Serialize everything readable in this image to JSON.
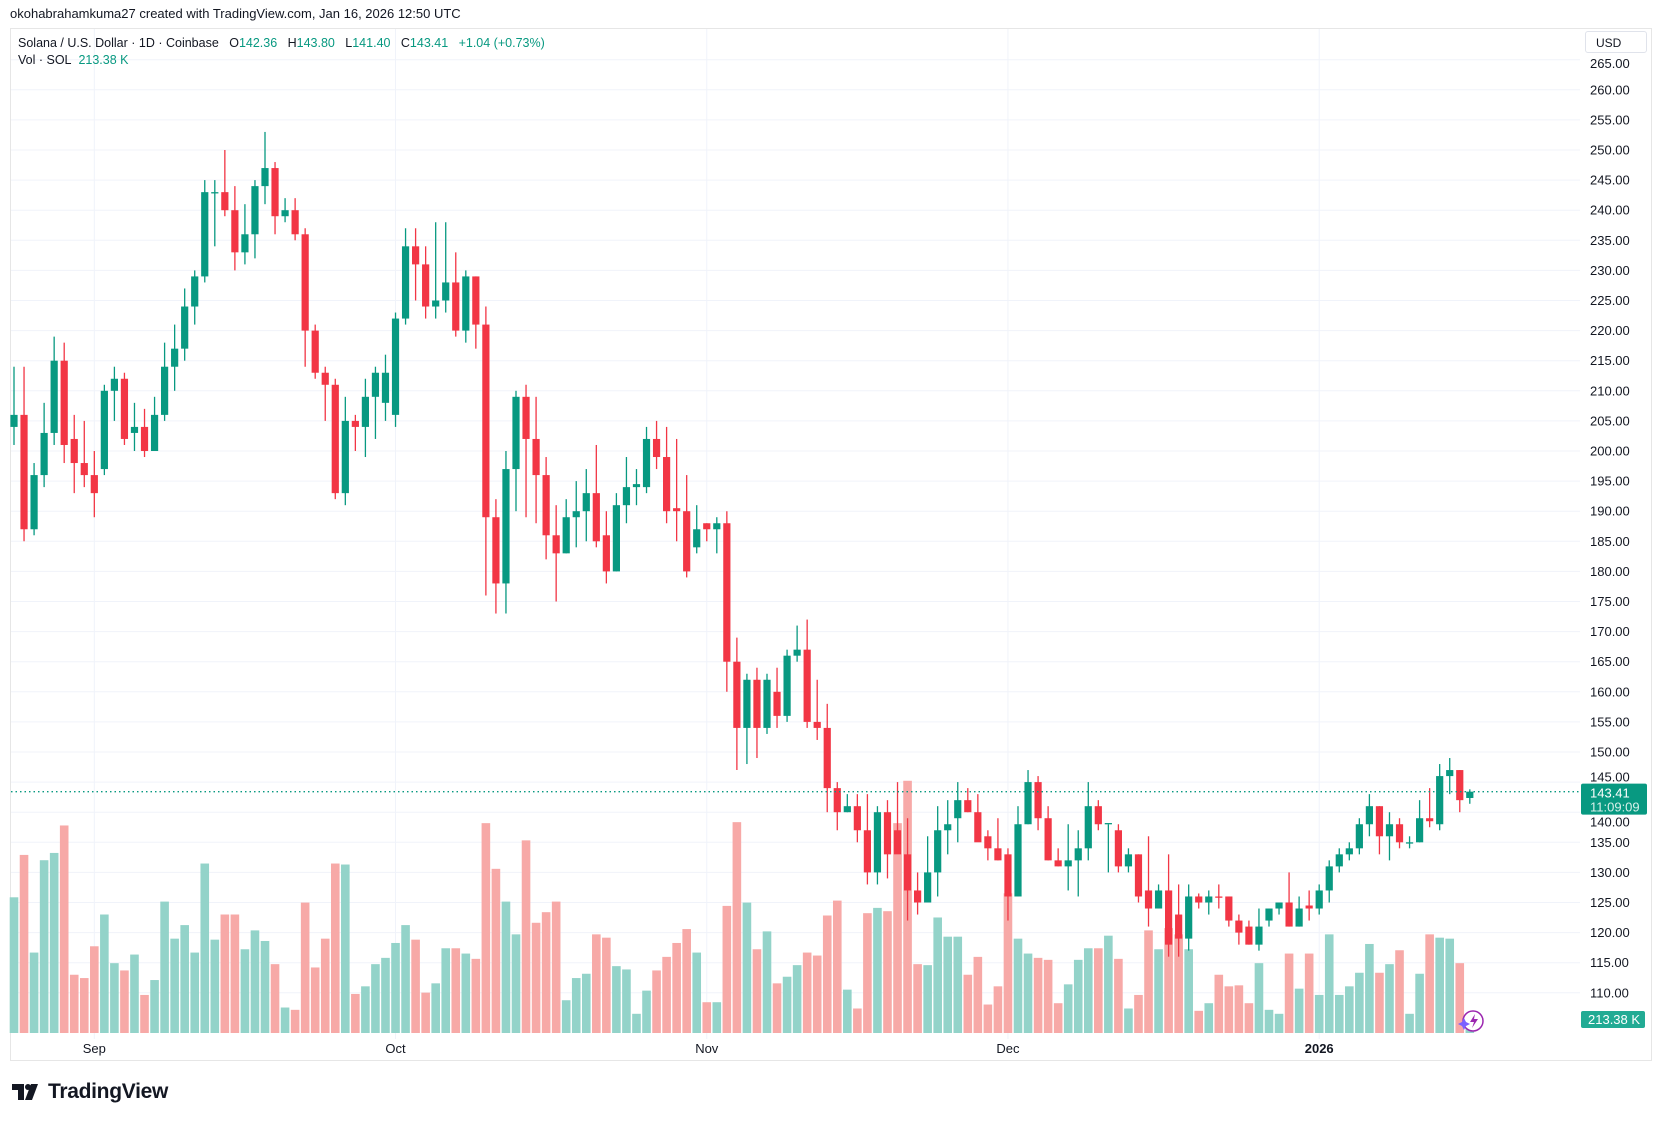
{
  "credit": "okohabrahamkuma27 created with TradingView.com, Jan 16, 2026 12:50 UTC",
  "legend": {
    "symbol": "Solana / U.S. Dollar · 1D · Coinbase",
    "o_label": "O",
    "o": "142.36",
    "h_label": "H",
    "h": "143.80",
    "l_label": "L",
    "l": "141.40",
    "c_label": "C",
    "c": "143.41",
    "change": "+1.04 (+0.73%)",
    "vol_label": "Vol · SOL",
    "vol": "213.38 K"
  },
  "currency": "USD",
  "last_price_label": "143.41",
  "countdown": "11:09:09",
  "last_volume_label": "213.38 K",
  "brand": "TradingView",
  "colors": {
    "up": "#089981",
    "down": "#f23645",
    "vol_up": "#93d3c9",
    "vol_down": "#f7a9a7",
    "grid": "#f0f3fa"
  },
  "chart_data": {
    "type": "candlestick",
    "title": "Solana / U.S. Dollar · 1D · Coinbase",
    "x_start": "2025-08-24",
    "interval": "1D",
    "ylim": [
      105,
      265
    ],
    "y_ticks": [
      "265.00",
      "260.00",
      "255.00",
      "250.00",
      "245.00",
      "240.00",
      "235.00",
      "230.00",
      "225.00",
      "220.00",
      "215.00",
      "210.00",
      "205.00",
      "200.00",
      "195.00",
      "190.00",
      "185.00",
      "180.00",
      "175.00",
      "170.00",
      "165.00",
      "160.00",
      "155.00",
      "150.00",
      "145.00",
      "140.00",
      "135.00",
      "130.00",
      "125.00",
      "120.00",
      "115.00",
      "110.00"
    ],
    "x_labels": [
      {
        "label": "Sep",
        "index": 8,
        "bold": false
      },
      {
        "label": "Oct",
        "index": 38,
        "bold": false
      },
      {
        "label": "Nov",
        "index": 69,
        "bold": false
      },
      {
        "label": "Dec",
        "index": 99,
        "bold": false
      },
      {
        "label": "2026",
        "index": 130,
        "bold": true
      }
    ],
    "volume_unit": "M SOL",
    "ohlc": [
      [
        204,
        214,
        201,
        206
      ],
      [
        206,
        214,
        185,
        187
      ],
      [
        187,
        198,
        186,
        196
      ],
      [
        196,
        208,
        194,
        203
      ],
      [
        203,
        219,
        201,
        215
      ],
      [
        215,
        218,
        198,
        201
      ],
      [
        202,
        206,
        193,
        198
      ],
      [
        198,
        205,
        194,
        196
      ],
      [
        196,
        200,
        189,
        193
      ],
      [
        197,
        211,
        196,
        210
      ],
      [
        210,
        214,
        205,
        212
      ],
      [
        212,
        213,
        201,
        202
      ],
      [
        203,
        208,
        200,
        204
      ],
      [
        204,
        207,
        199,
        200
      ],
      [
        200,
        209,
        200,
        206
      ],
      [
        206,
        218,
        205,
        214
      ],
      [
        214,
        221,
        210,
        217
      ],
      [
        217,
        227,
        215,
        224
      ],
      [
        224,
        230,
        221,
        229
      ],
      [
        229,
        245,
        228,
        243
      ],
      [
        243,
        245,
        234,
        243
      ],
      [
        243,
        250,
        239,
        240
      ],
      [
        240,
        244,
        230,
        233
      ],
      [
        233,
        241,
        231,
        236
      ],
      [
        236,
        245,
        232,
        244
      ],
      [
        244,
        253,
        241,
        247
      ],
      [
        247,
        248,
        236,
        239
      ],
      [
        239,
        242,
        238,
        240
      ],
      [
        240,
        242,
        235,
        236
      ],
      [
        236,
        237,
        214,
        220
      ],
      [
        220,
        221,
        212,
        213
      ],
      [
        213,
        214,
        205,
        211
      ],
      [
        211,
        212,
        192,
        193
      ],
      [
        193,
        209,
        191,
        205
      ],
      [
        205,
        206,
        200,
        204
      ],
      [
        204,
        212,
        199,
        209
      ],
      [
        209,
        214,
        202,
        213
      ],
      [
        208,
        216,
        205,
        213
      ],
      [
        206,
        223,
        204,
        222
      ],
      [
        222,
        237,
        221,
        234
      ],
      [
        234,
        237,
        225,
        231
      ],
      [
        231,
        234,
        222,
        224
      ],
      [
        224,
        238,
        222,
        225
      ],
      [
        225,
        238,
        223,
        228
      ],
      [
        228,
        233,
        219,
        220
      ],
      [
        220,
        230,
        218,
        229
      ],
      [
        229,
        229,
        217,
        221
      ],
      [
        221,
        224,
        176,
        189
      ],
      [
        189,
        192,
        173,
        178
      ],
      [
        178,
        200,
        173,
        197
      ],
      [
        197,
        210,
        190,
        209
      ],
      [
        209,
        211,
        189,
        202
      ],
      [
        202,
        209,
        188,
        196
      ],
      [
        196,
        199,
        182,
        186
      ],
      [
        186,
        191,
        175,
        183
      ],
      [
        183,
        192,
        183,
        189
      ],
      [
        189,
        195,
        184,
        190
      ],
      [
        190,
        197,
        185,
        193
      ],
      [
        193,
        201,
        184,
        185
      ],
      [
        186,
        190,
        178,
        180
      ],
      [
        180,
        193,
        180,
        191
      ],
      [
        191,
        199,
        188,
        194
      ],
      [
        194,
        197,
        191,
        194.5
      ],
      [
        194,
        204,
        193,
        202
      ],
      [
        202,
        205,
        197,
        199
      ],
      [
        199,
        204,
        188,
        190
      ],
      [
        190.5,
        202,
        185,
        190
      ],
      [
        190,
        196,
        179,
        180
      ],
      [
        184,
        191,
        183,
        187
      ],
      [
        188,
        188,
        185,
        187
      ],
      [
        187,
        189,
        183,
        188
      ],
      [
        188,
        190,
        160,
        165
      ],
      [
        165,
        169,
        147,
        154
      ],
      [
        154,
        163,
        148,
        162
      ],
      [
        162,
        164,
        149,
        154
      ],
      [
        154,
        163,
        153,
        162
      ],
      [
        160,
        164,
        154,
        156
      ],
      [
        156,
        167,
        155,
        166
      ],
      [
        166,
        171,
        165,
        167
      ],
      [
        167,
        172,
        154,
        155
      ],
      [
        155,
        162,
        152,
        154
      ],
      [
        154,
        158,
        140,
        144
      ],
      [
        144,
        145,
        137,
        140
      ],
      [
        140,
        143,
        140,
        141
      ],
      [
        141,
        143,
        135,
        137
      ],
      [
        137,
        143,
        128,
        130
      ],
      [
        130,
        141,
        128,
        140
      ],
      [
        140,
        142,
        129,
        133
      ],
      [
        137,
        145,
        134,
        133
      ],
      [
        133,
        139,
        122,
        127
      ],
      [
        127,
        130,
        123,
        125
      ],
      [
        125,
        136,
        125,
        130
      ],
      [
        130,
        141,
        126,
        137
      ],
      [
        137,
        142,
        133,
        138
      ],
      [
        139,
        145,
        135,
        142
      ],
      [
        142,
        144,
        140,
        140
      ],
      [
        140,
        143,
        136,
        135
      ],
      [
        136,
        137,
        132,
        134
      ],
      [
        134,
        139,
        132,
        132
      ],
      [
        133,
        134,
        122,
        126
      ],
      [
        126,
        141,
        126,
        138
      ],
      [
        138,
        147,
        138,
        145
      ],
      [
        145,
        146,
        137,
        139
      ],
      [
        139,
        141,
        132,
        132
      ],
      [
        132,
        134,
        131,
        131
      ],
      [
        131,
        138,
        127,
        132
      ],
      [
        132,
        137,
        126,
        134
      ],
      [
        134,
        145,
        132,
        141
      ],
      [
        141,
        142,
        137,
        138
      ],
      [
        138,
        138,
        130,
        138.2
      ],
      [
        137,
        138,
        130,
        131
      ],
      [
        131,
        134,
        130,
        133
      ],
      [
        133,
        133,
        125,
        126
      ],
      [
        127,
        136,
        121,
        124
      ],
      [
        124,
        128,
        124,
        127
      ],
      [
        127,
        133,
        116,
        118
      ],
      [
        123,
        128,
        116,
        119
      ],
      [
        119,
        128,
        117,
        126
      ],
      [
        126,
        126.5,
        124,
        125
      ],
      [
        125,
        127,
        123,
        126
      ],
      [
        126,
        128,
        124,
        125.8
      ],
      [
        126,
        126,
        121,
        122
      ],
      [
        122,
        123,
        118,
        120
      ],
      [
        121,
        122,
        118,
        118
      ],
      [
        118,
        124,
        117,
        121
      ],
      [
        122,
        124,
        121,
        124
      ],
      [
        124,
        125,
        123,
        125
      ],
      [
        125,
        130,
        121,
        121
      ],
      [
        121,
        126,
        121,
        124
      ],
      [
        124.5,
        127,
        122,
        124
      ],
      [
        124,
        128,
        123,
        127
      ],
      [
        127,
        132,
        125,
        131
      ],
      [
        131,
        134,
        130,
        133
      ],
      [
        133,
        135,
        132,
        134
      ],
      [
        134,
        139,
        133,
        138
      ],
      [
        138,
        143,
        136,
        141
      ],
      [
        141,
        141,
        133,
        136
      ],
      [
        136,
        140,
        132,
        138
      ],
      [
        138,
        139,
        134,
        135
      ],
      [
        135,
        136,
        134,
        135
      ],
      [
        135,
        142,
        135,
        139
      ],
      [
        139,
        144,
        137.5,
        138.5
      ],
      [
        138,
        148,
        137,
        146
      ],
      [
        146,
        149,
        143,
        147
      ],
      [
        147,
        147,
        140,
        142
      ],
      [
        142.36,
        143.8,
        141.4,
        143.41
      ]
    ],
    "volume": [
      4.1,
      5.38,
      2.43,
      5.22,
      5.44,
      6.27,
      1.76,
      1.66,
      2.62,
      3.58,
      2.11,
      1.89,
      2.37,
      1.15,
      1.6,
      3.97,
      2.85,
      3.26,
      2.43,
      5.12,
      2.82,
      3.58,
      3.58,
      2.53,
      3.1,
      2.78,
      2.08,
      0.77,
      0.7,
      3.94,
      1.98,
      2.85,
      5.12,
      5.09,
      1.18,
      1.41,
      2.08,
      2.27,
      2.72,
      3.26,
      2.82,
      1.22,
      1.5,
      2.56,
      2.56,
      2.4,
      2.24,
      6.34,
      4.96,
      3.97,
      2.98,
      5.82,
      3.33,
      3.65,
      3.97,
      0.99,
      1.66,
      1.79,
      2.98,
      2.88,
      2.02,
      1.92,
      0.58,
      1.28,
      1.89,
      2.3,
      2.72,
      3.14,
      2.43,
      0.93,
      0.93,
      3.84,
      6.37,
      3.94,
      2.53,
      3.07,
      1.5,
      1.7,
      2.05,
      2.43,
      2.34,
      3.55,
      4.0,
      1.31,
      0.74,
      3.62,
      3.78,
      3.68,
      6.34,
      7.62,
      2.08,
      2.05,
      3.49,
      2.91,
      2.91,
      1.76,
      2.3,
      0.86,
      1.41,
      4.22,
      2.85,
      2.4,
      2.27,
      2.21,
      0.9,
      1.47,
      2.21,
      2.56,
      2.56,
      2.94,
      2.24,
      0.74,
      1.15,
      3.1,
      2.53,
      3.17,
      2.98,
      2.53,
      0.67,
      0.9,
      1.76,
      1.41,
      1.44,
      0.9,
      2.11,
      0.7,
      0.58,
      2.4,
      1.34,
      2.4,
      1.15,
      2.98,
      1.15,
      1.41,
      1.82,
      2.69,
      1.82,
      2.08,
      2.5,
      0.58,
      1.79,
      2.98,
      2.88,
      2.85,
      2.11,
      0.21
    ],
    "last_price": 143.41
  }
}
